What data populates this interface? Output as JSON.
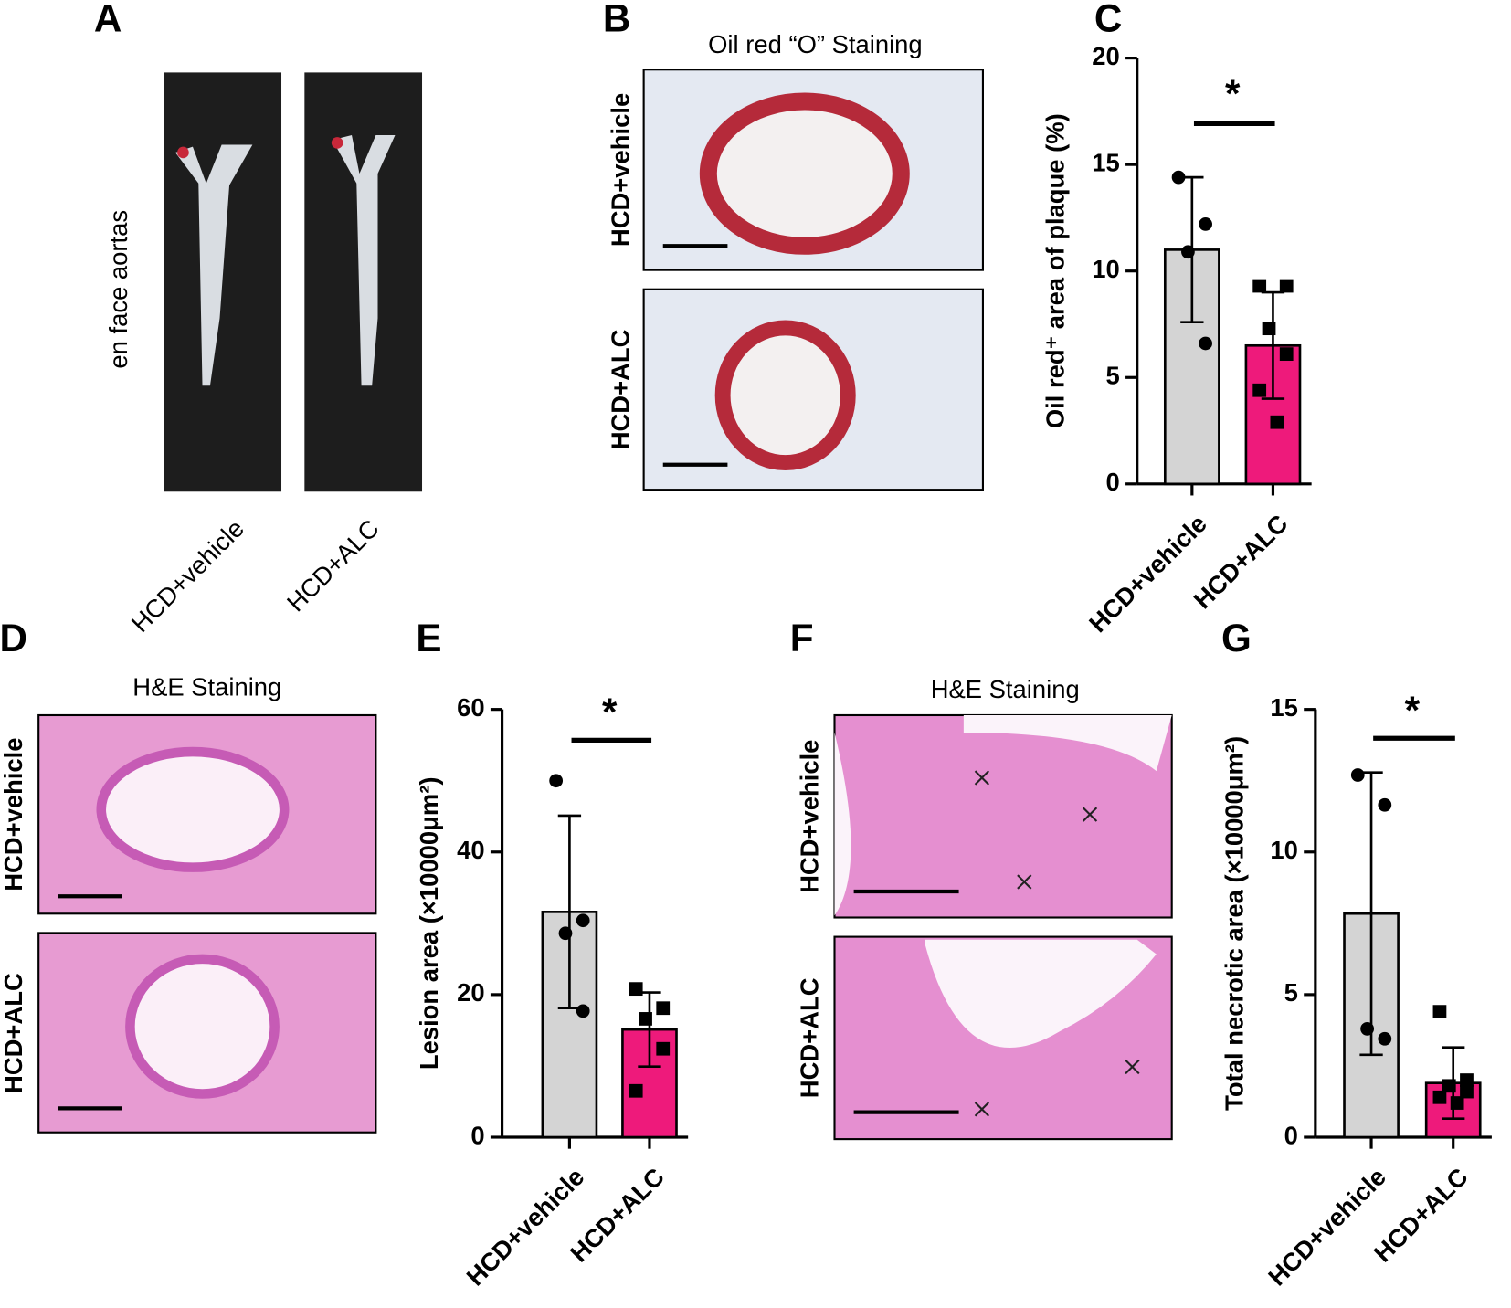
{
  "panels": {
    "A": {
      "letter": "A",
      "side_label": "en face aortas",
      "groups": [
        "HCD+vehicle",
        "HCD+ALC"
      ]
    },
    "B": {
      "letter": "B",
      "title": "Oil red “O” Staining",
      "rows": [
        "HCD+vehicle",
        "HCD+ALC"
      ]
    },
    "D": {
      "letter": "D",
      "title": "H&E Staining",
      "rows": [
        "HCD+vehicle",
        "HCD+ALC"
      ]
    },
    "F": {
      "letter": "F",
      "title": "H&E Staining",
      "rows": [
        "HCD+vehicle",
        "HCD+ALC"
      ]
    }
  },
  "chart_data": [
    {
      "type": "bar",
      "panel_label": "C",
      "y_label": "Oil red⁺ area of plaque (%)",
      "categories": [
        "HCD+vehicle",
        "HCD+ALC"
      ],
      "colors": [
        "#d4d4d4",
        "#ee1a7b"
      ],
      "values": [
        11.0,
        6.5
      ],
      "errors": [
        3.4,
        2.5
      ],
      "points": [
        [
          14.4,
          12.2,
          10.9,
          6.6
        ],
        [
          9.3,
          9.3,
          7.3,
          6.1,
          4.4,
          2.9
        ]
      ],
      "significance": "*",
      "ylim": [
        0,
        20
      ],
      "yticks": [
        0,
        5,
        10,
        15,
        20
      ]
    },
    {
      "type": "bar",
      "panel_label": "E",
      "y_label": "Lesion area (×10000μm²)",
      "categories": [
        "HCD+vehicle",
        "HCD+ALC"
      ],
      "colors": [
        "#d4d4d4",
        "#ee1a7b"
      ],
      "values": [
        31.6,
        15.1
      ],
      "errors": [
        13.5,
        5.2
      ],
      "points": [
        [
          50,
          30.4,
          28.6,
          17.7
        ],
        [
          20.8,
          18.1,
          16.6,
          12.4,
          6.5
        ]
      ],
      "significance": "*",
      "ylim": [
        0,
        60
      ],
      "yticks": [
        0,
        20,
        40,
        60
      ]
    },
    {
      "type": "bar",
      "panel_label": "G",
      "y_label": "Total necrotic area (×10000μm²)",
      "categories": [
        "HCD+vehicle",
        "HCD+ALC"
      ],
      "colors": [
        "#d4d4d4",
        "#ee1a7b"
      ],
      "values": [
        7.84,
        1.9
      ],
      "errors": [
        4.95,
        1.25
      ],
      "points": [
        [
          12.7,
          11.65,
          3.8,
          3.45
        ],
        [
          4.4,
          2.0,
          1.8,
          1.6,
          1.4,
          1.2
        ]
      ],
      "significance": "*",
      "ylim": [
        0,
        15
      ],
      "yticks": [
        0,
        5,
        10,
        15
      ]
    }
  ]
}
